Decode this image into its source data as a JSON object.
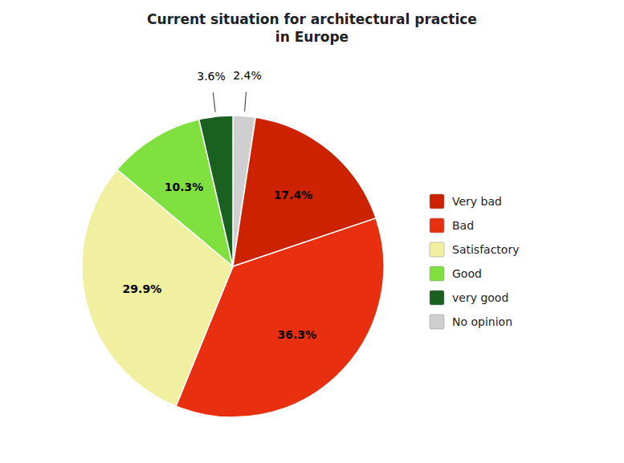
{
  "chart_data": {
    "type": "pie",
    "title": "Current situation for architectural practice\nin Europe",
    "categories": [
      "No opinion",
      "Very bad",
      "Bad",
      "Satisfactory",
      "Good",
      "very good"
    ],
    "values": [
      2.4,
      17.4,
      36.3,
      29.9,
      10.3,
      3.6
    ],
    "value_labels": [
      "2.4%",
      "17.4%",
      "36.3%",
      "29.9%",
      "10.3%",
      "3.6%"
    ],
    "colors": [
      "#D0CFCF",
      "#CC2200",
      "#E83010",
      "#F0F0A0",
      "#80E040",
      "#1A6020"
    ],
    "legend_labels": [
      "Very bad",
      "Bad",
      "Satisfactory",
      "Good",
      "very good",
      "No opinion"
    ],
    "data_labels": true
  }
}
